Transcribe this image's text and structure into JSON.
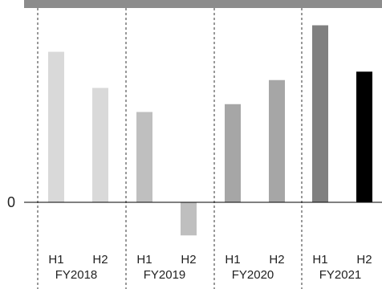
{
  "chart_data": {
    "type": "bar",
    "title": "",
    "xlabel": "",
    "ylabel": "",
    "y_tick_labels": [
      "0"
    ],
    "ylim": [
      -60,
      320
    ],
    "groups": [
      {
        "label": "FY2018",
        "periods": [
          "H1",
          "H2"
        ],
        "values": [
          250,
          190
        ],
        "colors": [
          "#d9d9d9",
          "#d9d9d9"
        ]
      },
      {
        "label": "FY2019",
        "periods": [
          "H1",
          "H2"
        ],
        "values": [
          150,
          -55
        ],
        "colors": [
          "#bfbfbf",
          "#bfbfbf"
        ]
      },
      {
        "label": "FY2020",
        "periods": [
          "H1",
          "H2"
        ],
        "values": [
          163,
          203
        ],
        "colors": [
          "#a6a6a6",
          "#a6a6a6"
        ]
      },
      {
        "label": "FY2021",
        "periods": [
          "H1",
          "H2"
        ],
        "values": [
          294,
          217
        ],
        "colors": [
          "#808080",
          "#000000"
        ]
      }
    ],
    "grid": false,
    "legend": "none"
  }
}
